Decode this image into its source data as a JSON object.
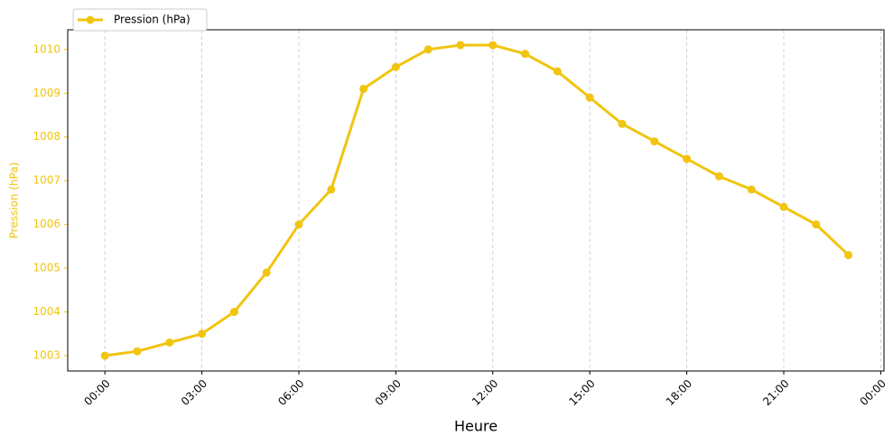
{
  "chart_data": {
    "type": "line",
    "x_label": "Heure",
    "y_label": "Pression (hPa)",
    "x": [
      0,
      1,
      2,
      3,
      4,
      5,
      6,
      7,
      8,
      9,
      10,
      11,
      12,
      13,
      14,
      15,
      16,
      17,
      18,
      19,
      20,
      21,
      22,
      23
    ],
    "series": [
      {
        "name": "Pression (hPa)",
        "color": "#f1c40f",
        "values": [
          1003.0,
          1003.1,
          1003.3,
          1003.5,
          1004.0,
          1004.9,
          1006.0,
          1006.8,
          1009.1,
          1009.6,
          1010.0,
          1010.1,
          1010.1,
          1009.9,
          1009.5,
          1008.9,
          1008.3,
          1007.9,
          1007.5,
          1007.1,
          1006.8,
          1006.4,
          1006.0,
          1005.3
        ]
      }
    ],
    "xlim": [
      -1.15,
      24.1
    ],
    "xticks": [
      {
        "value": 0,
        "label": "00:00"
      },
      {
        "value": 3,
        "label": "03:00"
      },
      {
        "value": 6,
        "label": "06:00"
      },
      {
        "value": 9,
        "label": "09:00"
      },
      {
        "value": 12,
        "label": "12:00"
      },
      {
        "value": 15,
        "label": "15:00"
      },
      {
        "value": 18,
        "label": "18:00"
      },
      {
        "value": 21,
        "label": "21:00"
      },
      {
        "value": 24,
        "label": "00:00"
      }
    ],
    "ylim": [
      1002.65,
      1010.45
    ],
    "yticks": [
      1003,
      1004,
      1005,
      1006,
      1007,
      1008,
      1009,
      1010
    ],
    "grid": "x",
    "legend": "upper left"
  }
}
